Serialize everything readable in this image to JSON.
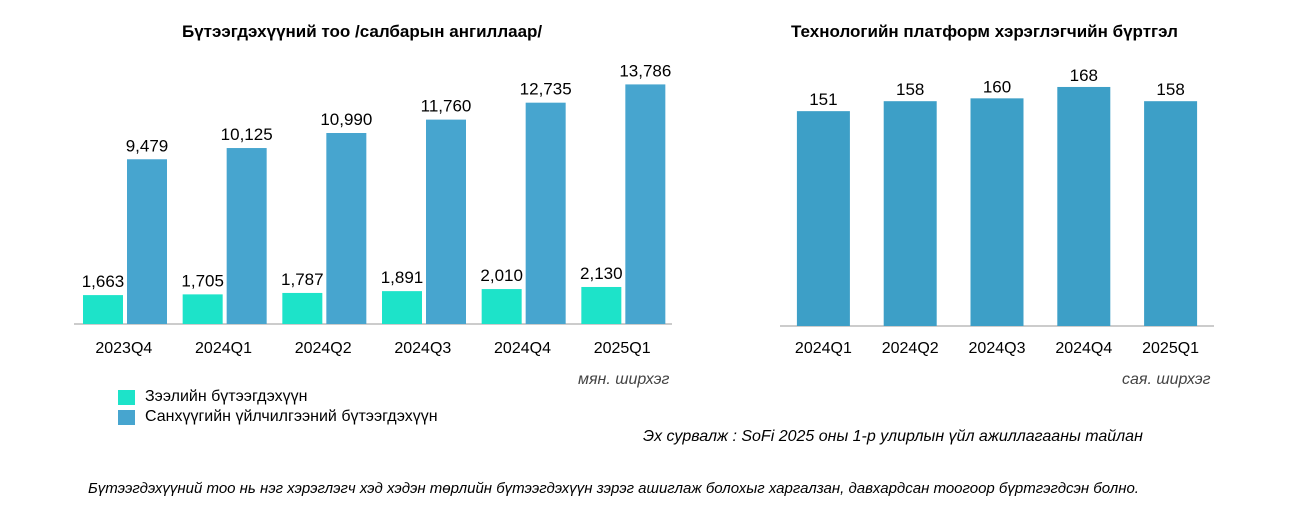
{
  "titles": {
    "left": "Бүтээгдэхүүний тоо /салбарын ангиллаар/",
    "right": "Технологийн платформ хэрэглэгчийн бүртгэл"
  },
  "units": {
    "left": "мян. ширхэг",
    "right": "сая. ширхэг"
  },
  "legend": {
    "loan": "Зээлийн бүтээгдэхүүн",
    "financial": "Санхүүгийн үйлчилгээний бүтээгдэхүүн"
  },
  "source": "Эх сурвалж : SoFi 2025 оны 1-р улирлын үйл ажиллагааны тайлан",
  "footnote": "Бүтээгдэхүүний тоо нь нэг хэрэглэгч хэд хэдэн төрлийн бүтээгдэхүүн зэрэг ашиглаж болохыг харгалзан, давхардсан тоогоор бүртгэгдсэн болно.",
  "colors": {
    "loan": "#1de3c9",
    "financial": "#47a5cf",
    "platform": "#3d9fc7",
    "axis": "#999999"
  },
  "chart_data": [
    {
      "type": "bar",
      "title": "Бүтээгдэхүүний тоо /салбарын ангиллаар/",
      "categories": [
        "2023Q4",
        "2024Q1",
        "2024Q2",
        "2024Q3",
        "2024Q4",
        "2025Q1"
      ],
      "series": [
        {
          "name": "Зээлийн бүтээгдэхүүн",
          "values": [
            1663,
            1705,
            1787,
            1891,
            2010,
            2130
          ],
          "labels": [
            "1,663",
            "1,705",
            "1,787",
            "1,891",
            "2,010",
            "2,130"
          ]
        },
        {
          "name": "Санхүүгийн үйлчилгээний бүтээгдэхүүн",
          "values": [
            9479,
            10125,
            10990,
            11760,
            12735,
            13786
          ],
          "labels": [
            "9,479",
            "10,125",
            "10,990",
            "11,760",
            "12,735",
            "13,786"
          ]
        }
      ],
      "ylabel": "",
      "ylim": [
        0,
        14500
      ],
      "grid": false,
      "legend_position": "bottom-left"
    },
    {
      "type": "bar",
      "title": "Технологийн платформ хэрэглэгчийн бүртгэл",
      "categories": [
        "2024Q1",
        "2024Q2",
        "2024Q3",
        "2024Q4",
        "2025Q1"
      ],
      "series": [
        {
          "values": [
            151,
            158,
            160,
            168,
            158
          ],
          "labels": [
            "151",
            "158",
            "160",
            "168",
            "158"
          ]
        }
      ],
      "ylim": [
        0,
        175
      ],
      "grid": false
    }
  ]
}
